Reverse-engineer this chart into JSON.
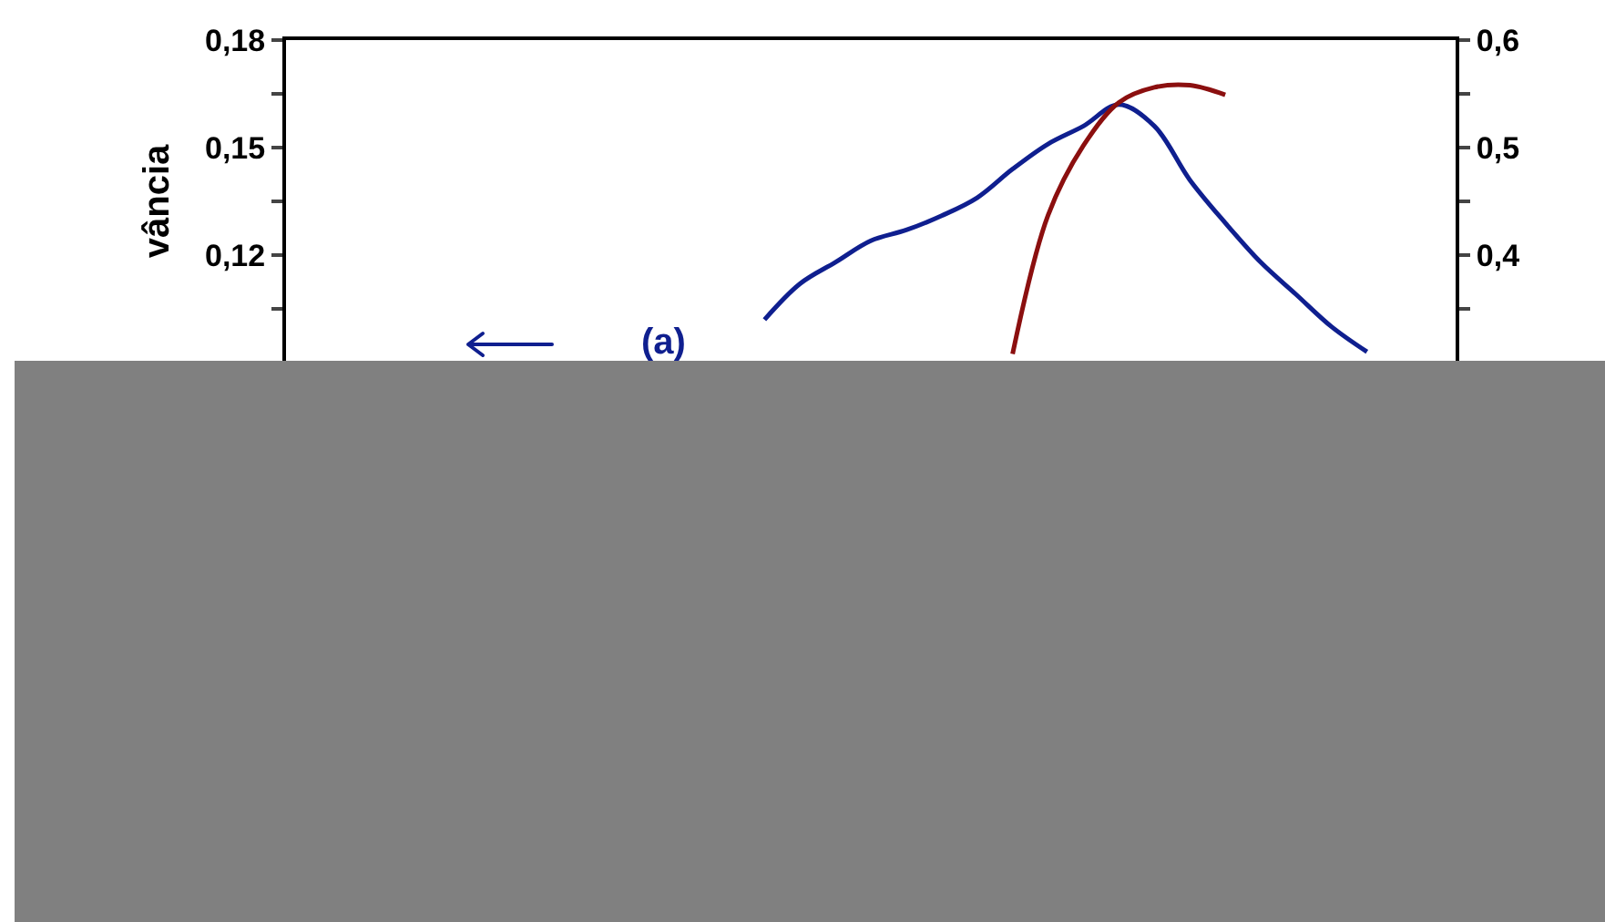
{
  "chart_data": {
    "type": "line",
    "ylabel": "vância",
    "annotations": [
      "(a)"
    ],
    "categories": [
      null,
      null,
      null,
      null,
      null,
      null,
      null,
      null,
      null,
      null,
      null,
      null,
      null,
      null,
      null,
      null,
      null,
      null,
      null,
      null,
      null,
      null,
      null,
      null,
      null,
      null,
      null,
      null,
      null,
      null,
      null,
      null,
      null
    ],
    "series": [
      {
        "color": "#0f1f8f",
        "values": [
          null,
          null,
          null,
          null,
          null,
          null,
          null,
          null,
          null,
          null,
          null,
          null,
          null,
          0.102,
          0.112,
          0.118,
          0.124,
          0.127,
          0.131,
          0.136,
          0.144,
          0.151,
          0.156,
          0.162,
          0.156,
          0.141,
          0.129,
          0.118,
          0.109,
          0.1,
          0.093,
          null,
          null
        ]
      },
      {
        "color": "#8b0f0f",
        "axis": "y2",
        "values": [
          null,
          null,
          null,
          null,
          null,
          null,
          null,
          null,
          null,
          null,
          null,
          null,
          null,
          null,
          null,
          null,
          null,
          null,
          null,
          null,
          0.308,
          0.437,
          0.502,
          0.542,
          0.556,
          0.558,
          0.549,
          null,
          null,
          null,
          null,
          null,
          null
        ]
      }
    ],
    "ylim": [
      0.09,
      0.18
    ],
    "yticks": [
      {
        "value": 0.105,
        "label": null
      },
      {
        "value": 0.12,
        "label": "0,12"
      },
      {
        "value": 0.135,
        "label": null
      },
      {
        "value": 0.15,
        "label": "0,15"
      },
      {
        "value": 0.165,
        "label": null
      },
      {
        "value": 0.18,
        "label": "0,18"
      }
    ],
    "y2lim": [
      0.3,
      0.6
    ],
    "y2ticks": [
      {
        "value": 0.35,
        "label": null
      },
      {
        "value": 0.4,
        "label": "0,4"
      },
      {
        "value": 0.45,
        "label": null
      },
      {
        "value": 0.5,
        "label": "0,5"
      },
      {
        "value": 0.55,
        "label": null
      },
      {
        "value": 0.6,
        "label": "0,6"
      }
    ],
    "tick_labels": "y",
    "grid": false,
    "marker": "none",
    "line_style": "solid"
  }
}
